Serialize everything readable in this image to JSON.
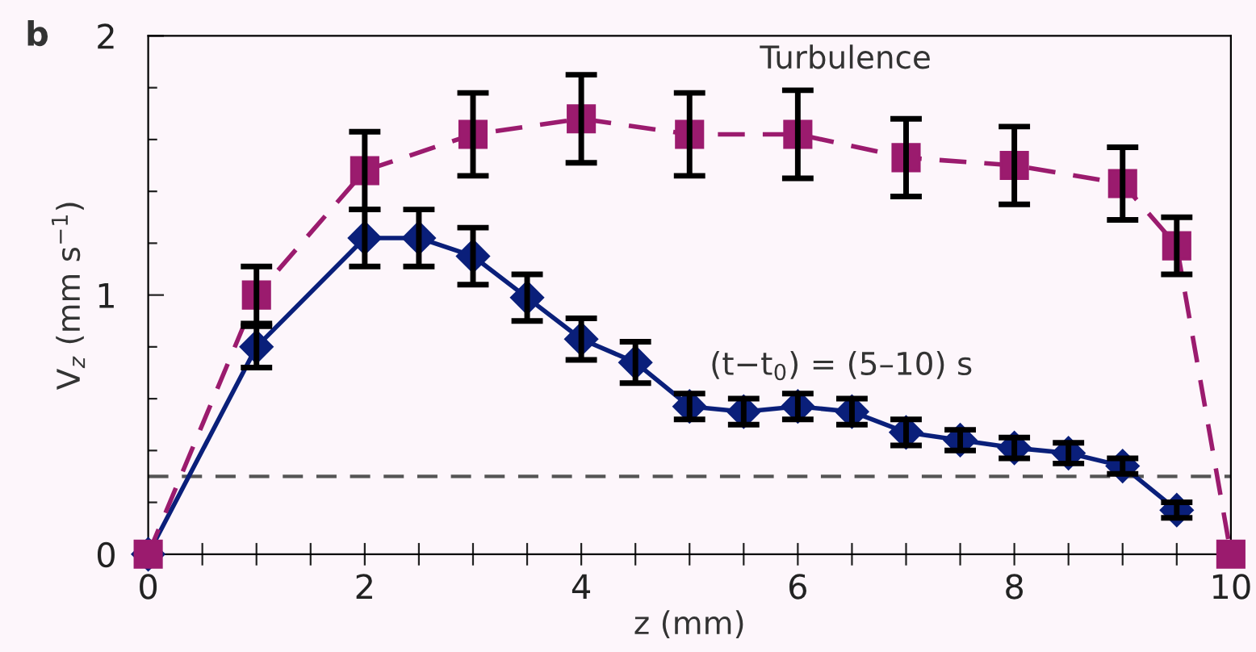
{
  "chart_data": {
    "type": "line",
    "xlabel": "z (mm)",
    "ylabel": "V$_{z}$ (mm s$^{−1}$)",
    "xlim": [
      0,
      10
    ],
    "ylim": [
      0,
      2
    ],
    "xticks": [
      0,
      {
        "value": 0.5,
        "label": null
      },
      {
        "value": 1,
        "label": null
      },
      {
        "value": 1.5,
        "label": null
      },
      2,
      {
        "value": 2.5,
        "label": null
      },
      {
        "value": 3,
        "label": null
      },
      {
        "value": 3.5,
        "label": null
      },
      4,
      {
        "value": 4.5,
        "label": null
      },
      {
        "value": 5,
        "label": null
      },
      {
        "value": 5.5,
        "label": null
      },
      6,
      {
        "value": 6.5,
        "label": null
      },
      {
        "value": 7,
        "label": null
      },
      {
        "value": 7.5,
        "label": null
      },
      8,
      {
        "value": 8.5,
        "label": null
      },
      {
        "value": 9,
        "label": null
      },
      {
        "value": 9.5,
        "label": null
      },
      10
    ],
    "yticks": [
      0,
      {
        "value": 0.2,
        "label": null
      },
      {
        "value": 0.4,
        "label": null
      },
      {
        "value": 0.6,
        "label": null
      },
      {
        "value": 0.8,
        "label": null
      },
      1,
      {
        "value": 1.2,
        "label": null
      },
      {
        "value": 1.4,
        "label": null
      },
      {
        "value": 1.6,
        "label": null
      },
      {
        "value": 1.8,
        "label": null
      },
      2
    ],
    "grid": false,
    "series": [
      {
        "color": "#0a1f7a",
        "marker": "diamond",
        "line_style": "solid",
        "x": [
          0,
          1,
          2,
          2.5,
          3,
          3.5,
          4,
          4.5,
          5,
          5.5,
          6,
          6.5,
          7,
          7.5,
          8,
          8.5,
          9,
          9.5
        ],
        "values": [
          0,
          0.8,
          1.22,
          1.22,
          1.15,
          0.99,
          0.83,
          0.74,
          0.57,
          0.55,
          0.57,
          0.55,
          0.47,
          0.44,
          0.41,
          0.39,
          0.34,
          0.17
        ],
        "errors": [
          null,
          0.08,
          0.11,
          0.11,
          0.11,
          0.09,
          0.08,
          0.08,
          0.05,
          0.05,
          0.05,
          0.05,
          0.05,
          0.04,
          0.04,
          0.04,
          0.03,
          0.03
        ]
      },
      {
        "color": "#9b1b6e",
        "marker": "square",
        "line_style": "dashed",
        "x": [
          0,
          1,
          2,
          3,
          4,
          5,
          6,
          7,
          8,
          9,
          9.5,
          10
        ],
        "values": [
          0,
          1.0,
          1.48,
          1.62,
          1.68,
          1.62,
          1.62,
          1.53,
          1.5,
          1.43,
          1.19,
          0
        ],
        "errors": [
          null,
          0.11,
          0.15,
          0.16,
          0.17,
          0.16,
          0.17,
          0.15,
          0.15,
          0.14,
          0.11,
          null
        ]
      }
    ],
    "ref_lines": [
      {
        "axis": "y",
        "value": 0.3,
        "color": "#555555",
        "line_style": "dashed"
      }
    ],
    "annotations": [
      "b",
      "Turbulence",
      "(t−t$_{0}$) = (5–10) s"
    ]
  }
}
